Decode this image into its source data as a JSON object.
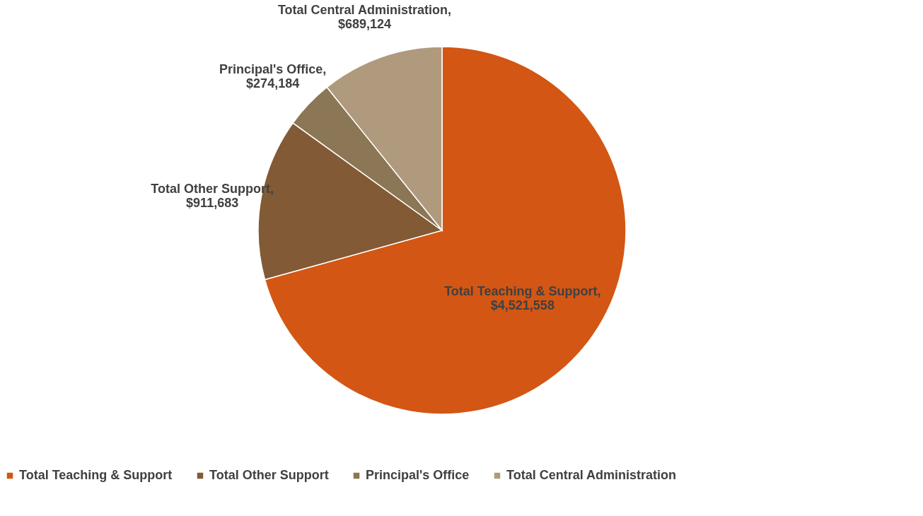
{
  "chart_data": {
    "type": "pie",
    "categories": [
      "Total Teaching & Support",
      "Total Other Support",
      "Principal's Office",
      "Total Central Administration"
    ],
    "values": [
      4521558,
      911683,
      274184,
      689124
    ],
    "colors": [
      "#d35614",
      "#825a35",
      "#8b7755",
      "#b09a7e"
    ],
    "value_labels": [
      "Total Teaching & Support, $4,521,558",
      "Total Other Support, $911,683",
      "Principal's Office, $274,184",
      "Total Central Administration, $689,124"
    ],
    "legend": "bottom"
  }
}
